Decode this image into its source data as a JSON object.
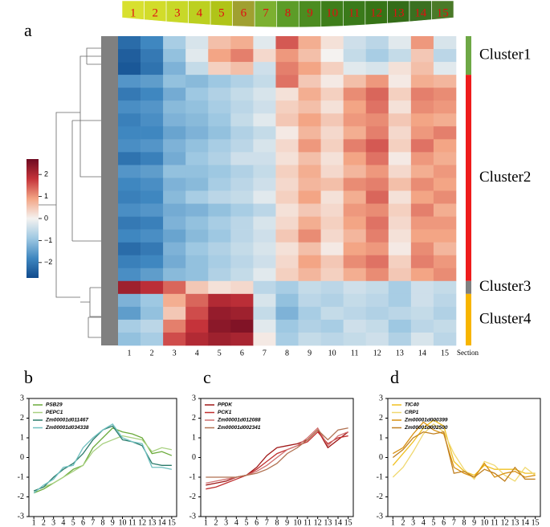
{
  "panel_labels": [
    "a",
    "b",
    "c",
    "d"
  ],
  "leaf": {
    "sections": [
      1,
      2,
      3,
      4,
      5,
      6,
      7,
      8,
      9,
      10,
      11,
      12,
      13,
      14,
      15
    ],
    "colors": [
      "#d8e030",
      "#d2dc2a",
      "#c8d828",
      "#bcd020",
      "#b0c418",
      "#a0a030",
      "#7cb030",
      "#5c9c28",
      "#4c8c20",
      "#3e7e1a",
      "#3a7a1a",
      "#367416",
      "#346c18",
      "#3a7020",
      "#4a7a28"
    ]
  },
  "chart_data": [
    {
      "type": "heatmap",
      "columns": [
        1,
        2,
        3,
        4,
        5,
        6,
        7,
        8,
        9,
        10,
        11,
        12,
        13,
        14,
        15
      ],
      "x_label": "Section",
      "colorbar": {
        "lim": [
          -2.7,
          2.7
        ],
        "ticks": [
          -2,
          -1,
          0,
          1,
          2
        ],
        "tick_labels": [
          "−2",
          "−1",
          "0",
          "1",
          "2"
        ],
        "colors": [
          "#104a8c",
          "#3f87c0",
          "#9ec8e2",
          "#f4f2f0",
          "#f3a585",
          "#c5333a",
          "#6e0a20"
        ]
      },
      "clusters": [
        {
          "name": "Cluster1",
          "color": "#6ea846",
          "rows": [
            [
              -2.2,
              -1.8,
              -0.8,
              -0.3,
              0.6,
              0.8,
              -0.2,
              1.5,
              0.8,
              0.2,
              -0.4,
              -0.6,
              -0.2,
              1.0,
              -0.3
            ],
            [
              -2.4,
              -2.0,
              -1.0,
              -0.2,
              0.9,
              1.2,
              0.3,
              1.0,
              0.6,
              0.0,
              -0.5,
              -0.8,
              -0.5,
              0.5,
              -0.6
            ],
            [
              -2.5,
              -2.1,
              -1.2,
              -0.5,
              0.4,
              0.6,
              -0.4,
              1.2,
              0.9,
              0.4,
              -0.2,
              -0.3,
              0.2,
              0.6,
              -0.2
            ]
          ]
        },
        {
          "name": "Cluster2",
          "color": "#ee1c1c",
          "rows": [
            [
              -1.6,
              -1.5,
              -1.0,
              -1.1,
              -0.9,
              -0.7,
              -0.5,
              1.3,
              0.5,
              0.1,
              0.6,
              1.0,
              0.1,
              0.8,
              0.7
            ],
            [
              -2.0,
              -1.8,
              -1.3,
              -0.9,
              -0.7,
              -0.5,
              -0.3,
              0.2,
              0.8,
              0.4,
              1.1,
              1.4,
              0.4,
              1.2,
              1.1
            ],
            [
              -1.7,
              -1.6,
              -1.1,
              -1.0,
              -0.8,
              -0.6,
              -0.4,
              0.4,
              0.6,
              0.2,
              0.9,
              1.3,
              0.2,
              1.1,
              1.0
            ],
            [
              -1.9,
              -1.7,
              -1.2,
              -1.1,
              -0.9,
              -0.5,
              -0.2,
              0.5,
              0.9,
              0.5,
              1.0,
              1.1,
              0.5,
              0.9,
              0.8
            ],
            [
              -1.8,
              -1.8,
              -1.4,
              -1.2,
              -1.0,
              -0.7,
              -0.5,
              0.1,
              0.7,
              0.3,
              0.8,
              1.2,
              0.3,
              1.0,
              1.2
            ],
            [
              -1.7,
              -1.6,
              -1.2,
              -1.0,
              -0.8,
              -0.6,
              -0.3,
              0.3,
              1.0,
              0.4,
              1.2,
              1.5,
              0.4,
              1.3,
              0.9
            ],
            [
              -2.1,
              -1.9,
              -1.3,
              -0.9,
              -0.7,
              -0.4,
              -0.4,
              0.2,
              0.6,
              0.2,
              0.9,
              1.3,
              0.1,
              1.0,
              0.8
            ],
            [
              -1.6,
              -1.5,
              -1.0,
              -1.0,
              -0.9,
              -0.7,
              -0.5,
              0.4,
              0.8,
              0.3,
              0.7,
              1.0,
              0.3,
              0.8,
              1.0
            ],
            [
              -1.8,
              -1.7,
              -1.2,
              -1.1,
              -0.8,
              -0.6,
              -0.4,
              0.3,
              0.7,
              0.6,
              1.1,
              1.2,
              0.6,
              1.1,
              0.9
            ],
            [
              -1.9,
              -1.8,
              -1.1,
              -0.8,
              -0.6,
              -0.5,
              -0.2,
              0.4,
              0.9,
              0.2,
              0.8,
              1.4,
              0.2,
              0.9,
              1.1
            ],
            [
              -1.7,
              -1.6,
              -1.3,
              -1.2,
              -1.0,
              -0.8,
              -0.6,
              0.2,
              0.5,
              0.3,
              1.0,
              1.1,
              0.4,
              1.2,
              0.8
            ],
            [
              -2.0,
              -1.9,
              -1.2,
              -1.0,
              -0.8,
              -0.6,
              -0.3,
              0.3,
              0.8,
              0.4,
              0.9,
              1.3,
              0.3,
              1.0,
              1.0
            ],
            [
              -1.8,
              -1.7,
              -1.4,
              -1.1,
              -0.9,
              -0.6,
              -0.4,
              0.5,
              1.1,
              0.3,
              0.7,
              1.2,
              0.2,
              0.9,
              0.9
            ],
            [
              -2.2,
              -2.0,
              -1.2,
              -0.9,
              -0.7,
              -0.5,
              -0.3,
              0.2,
              0.6,
              0.1,
              0.9,
              1.0,
              0.1,
              1.1,
              0.7
            ],
            [
              -1.9,
              -1.8,
              -1.3,
              -1.0,
              -0.8,
              -0.6,
              -0.4,
              0.3,
              0.9,
              0.5,
              1.1,
              1.3,
              0.4,
              1.2,
              1.0
            ],
            [
              -1.7,
              -1.5,
              -1.1,
              -1.0,
              -0.7,
              -0.5,
              -0.2,
              0.4,
              0.7,
              0.4,
              0.8,
              1.1,
              0.5,
              0.9,
              1.1
            ]
          ]
        },
        {
          "name": "Cluster3",
          "color": "#808080",
          "rows": [
            [
              2.2,
              1.9,
              1.4,
              0.5,
              0.2,
              0.3,
              -0.6,
              -0.8,
              -0.5,
              -0.6,
              -0.4,
              -0.5,
              -0.8,
              -0.4,
              -0.5
            ]
          ]
        },
        {
          "name": "Cluster4",
          "color": "#f7b500",
          "rows": [
            [
              -1.2,
              -0.9,
              0.8,
              1.4,
              2.0,
              1.9,
              -0.3,
              -1.0,
              -0.6,
              -0.7,
              -0.5,
              -0.6,
              -0.8,
              -0.4,
              -0.6
            ],
            [
              -1.5,
              -1.0,
              0.5,
              1.6,
              2.3,
              2.2,
              -0.5,
              -1.2,
              -0.8,
              -0.5,
              -0.6,
              -0.7,
              -0.6,
              -0.5,
              -0.7
            ],
            [
              -0.8,
              -0.6,
              1.2,
              1.8,
              2.4,
              2.5,
              -0.2,
              -0.9,
              -0.7,
              -0.8,
              -0.4,
              -0.5,
              -0.9,
              -0.6,
              -0.5
            ],
            [
              -1.0,
              -0.8,
              1.6,
              2.0,
              2.2,
              2.1,
              0.1,
              -0.8,
              -0.5,
              -0.6,
              -0.5,
              -0.4,
              -0.7,
              -0.3,
              -0.6
            ]
          ]
        }
      ]
    },
    {
      "type": "line",
      "x": [
        1,
        2,
        3,
        4,
        5,
        6,
        7,
        8,
        9,
        10,
        11,
        12,
        13,
        14,
        15
      ],
      "xlim": [
        0.5,
        15.5
      ],
      "ylim": [
        -3,
        3
      ],
      "yticks": [
        -3,
        -2,
        -1,
        0,
        1,
        2,
        3
      ],
      "series": [
        {
          "name": "PSB29",
          "color": "#6aaa3a",
          "values": [
            -1.8,
            -1.6,
            -1.3,
            -1.0,
            -0.6,
            -0.4,
            0.5,
            1.0,
            1.5,
            1.3,
            1.2,
            1.0,
            0.2,
            0.3,
            0.1
          ]
        },
        {
          "name": "PEPC1",
          "color": "#a8d080",
          "values": [
            -1.7,
            -1.5,
            -1.3,
            -1.0,
            -0.7,
            -0.4,
            0.3,
            0.7,
            0.9,
            1.1,
            1.0,
            0.9,
            0.3,
            0.5,
            0.4
          ]
        },
        {
          "name": "Zm00001d011467",
          "color": "#2a7a6a",
          "values": [
            -1.7,
            -1.5,
            -1.0,
            -0.6,
            -0.3,
            0.2,
            0.9,
            1.4,
            1.6,
            0.9,
            0.8,
            0.6,
            -0.3,
            -0.4,
            -0.4
          ]
        },
        {
          "name": "Zm00001d034338",
          "color": "#70c0c0",
          "values": [
            -1.8,
            -1.4,
            -1.1,
            -0.5,
            -0.4,
            0.5,
            1.0,
            1.4,
            1.7,
            1.0,
            0.8,
            0.7,
            -0.5,
            -0.5,
            -0.6
          ]
        }
      ]
    },
    {
      "type": "line",
      "x": [
        1,
        2,
        3,
        4,
        5,
        6,
        7,
        8,
        9,
        10,
        11,
        12,
        13,
        14,
        15
      ],
      "xlim": [
        0.5,
        15.5
      ],
      "ylim": [
        -3,
        3
      ],
      "yticks": [
        -3,
        -2,
        -1,
        0,
        1,
        2,
        3
      ],
      "series": [
        {
          "name": "PPDK",
          "color": "#a01818",
          "values": [
            -1.4,
            -1.3,
            -1.2,
            -1.0,
            -0.9,
            -0.5,
            0.1,
            0.5,
            0.6,
            0.7,
            0.9,
            1.4,
            0.5,
            0.9,
            1.3
          ]
        },
        {
          "name": "PCK1",
          "color": "#c03030",
          "values": [
            -1.6,
            -1.5,
            -1.3,
            -1.1,
            -0.9,
            -0.6,
            -0.2,
            0.2,
            0.4,
            0.6,
            0.8,
            1.3,
            0.7,
            1.0,
            1.1
          ]
        },
        {
          "name": "Zm00001d012088",
          "color": "#d07070",
          "values": [
            -1.3,
            -1.2,
            -1.1,
            -1.0,
            -0.9,
            -0.7,
            -0.4,
            0.0,
            0.4,
            0.6,
            1.0,
            1.5,
            0.6,
            1.1,
            1.3
          ]
        },
        {
          "name": "Zm00001d002341",
          "color": "#b07050",
          "values": [
            -1.0,
            -1.0,
            -1.0,
            -1.0,
            -0.9,
            -0.8,
            -0.6,
            -0.3,
            0.2,
            0.5,
            0.9,
            1.4,
            0.9,
            1.4,
            1.5
          ]
        }
      ]
    },
    {
      "type": "line",
      "x": [
        1,
        2,
        3,
        4,
        5,
        6,
        7,
        8,
        9,
        10,
        11,
        12,
        13,
        14,
        15
      ],
      "xlim": [
        0.5,
        15.5
      ],
      "ylim": [
        -3,
        3
      ],
      "yticks": [
        -3,
        -2,
        -1,
        0,
        1,
        2,
        3
      ],
      "series": [
        {
          "name": "TIC40",
          "color": "#f0c020",
          "values": [
            -0.4,
            0.2,
            0.8,
            1.5,
            1.9,
            1.6,
            -0.2,
            -0.7,
            -0.9,
            -0.4,
            -0.6,
            -0.6,
            -0.6,
            -0.8,
            -0.8
          ]
        },
        {
          "name": "CRP1",
          "color": "#f0d870",
          "values": [
            -1.0,
            -0.5,
            0.3,
            1.2,
            1.7,
            1.3,
            0.2,
            -0.6,
            -1.1,
            -0.2,
            -0.4,
            -0.9,
            -1.2,
            -0.5,
            -0.9
          ]
        },
        {
          "name": "Zm00001d000399",
          "color": "#d89010",
          "values": [
            0.2,
            0.5,
            1.2,
            1.8,
            1.4,
            1.2,
            -0.5,
            -0.8,
            -1.0,
            -0.3,
            -1.0,
            -0.8,
            -0.7,
            -1.0,
            -0.9
          ]
        },
        {
          "name": "Zm00001d002500",
          "color": "#c08020",
          "values": [
            0.0,
            0.4,
            1.0,
            1.3,
            1.2,
            1.3,
            -0.8,
            -0.7,
            -1.0,
            -0.6,
            -0.8,
            -1.2,
            -0.5,
            -1.1,
            -1.1
          ]
        }
      ]
    }
  ]
}
